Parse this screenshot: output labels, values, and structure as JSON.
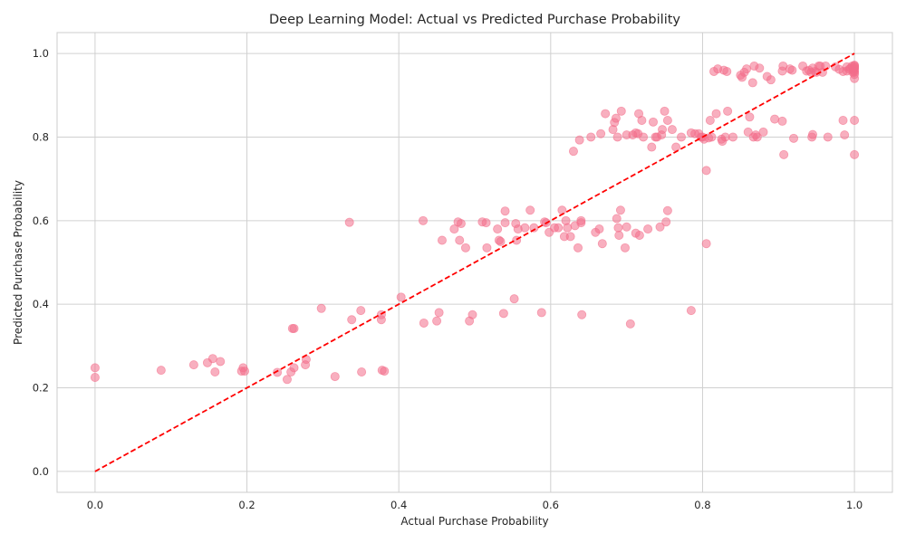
{
  "chart_data": {
    "type": "scatter",
    "title": "Deep Learning Model: Actual vs Predicted Purchase Probability",
    "xlabel": "Actual Purchase Probability",
    "ylabel": "Predicted Purchase Probability",
    "xlim": [
      -0.05,
      1.05
    ],
    "ylim": [
      -0.05,
      1.05
    ],
    "xticks": [
      "0.0",
      "0.2",
      "0.4",
      "0.6",
      "0.8",
      "1.0"
    ],
    "yticks": [
      "0.0",
      "0.2",
      "0.4",
      "0.6",
      "0.8",
      "1.0"
    ],
    "grid": true,
    "point_color": "#f36e8a",
    "line_color": "#ff0000",
    "reference_line": {
      "x": [
        0,
        1
      ],
      "y": [
        0,
        1
      ],
      "style": "dashed"
    },
    "points": [
      [
        0.0,
        0.248
      ],
      [
        0.0,
        0.225
      ],
      [
        0.087,
        0.242
      ],
      [
        0.13,
        0.255
      ],
      [
        0.148,
        0.26
      ],
      [
        0.155,
        0.27
      ],
      [
        0.158,
        0.238
      ],
      [
        0.165,
        0.263
      ],
      [
        0.193,
        0.24
      ],
      [
        0.195,
        0.248
      ],
      [
        0.197,
        0.24
      ],
      [
        0.24,
        0.237
      ],
      [
        0.253,
        0.22
      ],
      [
        0.258,
        0.238
      ],
      [
        0.262,
        0.248
      ],
      [
        0.26,
        0.342
      ],
      [
        0.262,
        0.342
      ],
      [
        0.277,
        0.255
      ],
      [
        0.278,
        0.268
      ],
      [
        0.298,
        0.39
      ],
      [
        0.316,
        0.227
      ],
      [
        0.335,
        0.596
      ],
      [
        0.338,
        0.363
      ],
      [
        0.35,
        0.385
      ],
      [
        0.351,
        0.238
      ],
      [
        0.377,
        0.375
      ],
      [
        0.377,
        0.363
      ],
      [
        0.378,
        0.242
      ],
      [
        0.381,
        0.24
      ],
      [
        0.403,
        0.417
      ],
      [
        0.432,
        0.6
      ],
      [
        0.433,
        0.355
      ],
      [
        0.45,
        0.36
      ],
      [
        0.453,
        0.38
      ],
      [
        0.457,
        0.553
      ],
      [
        0.473,
        0.58
      ],
      [
        0.478,
        0.597
      ],
      [
        0.48,
        0.553
      ],
      [
        0.482,
        0.593
      ],
      [
        0.488,
        0.535
      ],
      [
        0.493,
        0.36
      ],
      [
        0.497,
        0.375
      ],
      [
        0.51,
        0.597
      ],
      [
        0.515,
        0.595
      ],
      [
        0.516,
        0.535
      ],
      [
        0.53,
        0.58
      ],
      [
        0.532,
        0.553
      ],
      [
        0.534,
        0.55
      ],
      [
        0.538,
        0.378
      ],
      [
        0.54,
        0.623
      ],
      [
        0.54,
        0.595
      ],
      [
        0.552,
        0.413
      ],
      [
        0.554,
        0.593
      ],
      [
        0.555,
        0.553
      ],
      [
        0.557,
        0.58
      ],
      [
        0.566,
        0.583
      ],
      [
        0.573,
        0.625
      ],
      [
        0.578,
        0.583
      ],
      [
        0.588,
        0.38
      ],
      [
        0.592,
        0.597
      ],
      [
        0.594,
        0.595
      ],
      [
        0.598,
        0.572
      ],
      [
        0.605,
        0.583
      ],
      [
        0.61,
        0.583
      ],
      [
        0.615,
        0.625
      ],
      [
        0.618,
        0.562
      ],
      [
        0.62,
        0.6
      ],
      [
        0.622,
        0.583
      ],
      [
        0.626,
        0.562
      ],
      [
        0.63,
        0.766
      ],
      [
        0.632,
        0.588
      ],
      [
        0.636,
        0.535
      ],
      [
        0.638,
        0.793
      ],
      [
        0.64,
        0.6
      ],
      [
        0.64,
        0.595
      ],
      [
        0.641,
        0.375
      ],
      [
        0.653,
        0.8
      ],
      [
        0.659,
        0.572
      ],
      [
        0.664,
        0.58
      ],
      [
        0.666,
        0.808
      ],
      [
        0.668,
        0.545
      ],
      [
        0.672,
        0.856
      ],
      [
        0.682,
        0.818
      ],
      [
        0.684,
        0.835
      ],
      [
        0.686,
        0.845
      ],
      [
        0.687,
        0.605
      ],
      [
        0.689,
        0.583
      ],
      [
        0.69,
        0.565
      ],
      [
        0.692,
        0.625
      ],
      [
        0.693,
        0.862
      ],
      [
        0.688,
        0.8
      ],
      [
        0.698,
        0.535
      ],
      [
        0.7,
        0.585
      ],
      [
        0.7,
        0.805
      ],
      [
        0.705,
        0.353
      ],
      [
        0.708,
        0.805
      ],
      [
        0.712,
        0.81
      ],
      [
        0.712,
        0.57
      ],
      [
        0.715,
        0.808
      ],
      [
        0.717,
        0.565
      ],
      [
        0.716,
        0.856
      ],
      [
        0.72,
        0.84
      ],
      [
        0.722,
        0.8
      ],
      [
        0.728,
        0.58
      ],
      [
        0.733,
        0.776
      ],
      [
        0.735,
        0.836
      ],
      [
        0.738,
        0.8
      ],
      [
        0.74,
        0.8
      ],
      [
        0.744,
        0.585
      ],
      [
        0.746,
        0.805
      ],
      [
        0.747,
        0.818
      ],
      [
        0.75,
        0.862
      ],
      [
        0.752,
        0.597
      ],
      [
        0.754,
        0.84
      ],
      [
        0.754,
        0.624
      ],
      [
        0.76,
        0.818
      ],
      [
        0.765,
        0.776
      ],
      [
        0.772,
        0.8
      ],
      [
        0.785,
        0.385
      ],
      [
        0.785,
        0.81
      ],
      [
        0.79,
        0.808
      ],
      [
        0.795,
        0.808
      ],
      [
        0.798,
        0.8
      ],
      [
        0.8,
        0.8
      ],
      [
        0.802,
        0.795
      ],
      [
        0.805,
        0.545
      ],
      [
        0.805,
        0.72
      ],
      [
        0.808,
        0.798
      ],
      [
        0.81,
        0.84
      ],
      [
        0.812,
        0.8
      ],
      [
        0.815,
        0.957
      ],
      [
        0.818,
        0.856
      ],
      [
        0.82,
        0.963
      ],
      [
        0.825,
        0.795
      ],
      [
        0.826,
        0.79
      ],
      [
        0.828,
        0.96
      ],
      [
        0.83,
        0.8
      ],
      [
        0.832,
        0.957
      ],
      [
        0.833,
        0.862
      ],
      [
        0.84,
        0.8
      ],
      [
        0.85,
        0.948
      ],
      [
        0.852,
        0.943
      ],
      [
        0.855,
        0.955
      ],
      [
        0.858,
        0.963
      ],
      [
        0.86,
        0.812
      ],
      [
        0.862,
        0.848
      ],
      [
        0.866,
        0.93
      ],
      [
        0.867,
        0.8
      ],
      [
        0.868,
        0.97
      ],
      [
        0.87,
        0.805
      ],
      [
        0.872,
        0.8
      ],
      [
        0.875,
        0.965
      ],
      [
        0.88,
        0.812
      ],
      [
        0.885,
        0.945
      ],
      [
        0.89,
        0.937
      ],
      [
        0.895,
        0.843
      ],
      [
        0.905,
        0.838
      ],
      [
        0.905,
        0.958
      ],
      [
        0.906,
        0.97
      ],
      [
        0.907,
        0.758
      ],
      [
        0.915,
        0.963
      ],
      [
        0.918,
        0.96
      ],
      [
        0.92,
        0.797
      ],
      [
        0.932,
        0.97
      ],
      [
        0.937,
        0.958
      ],
      [
        0.94,
        0.96
      ],
      [
        0.943,
        0.955
      ],
      [
        0.944,
        0.8
      ],
      [
        0.945,
        0.806
      ],
      [
        0.945,
        0.965
      ],
      [
        0.948,
        0.957
      ],
      [
        0.95,
        0.955
      ],
      [
        0.953,
        0.97
      ],
      [
        0.955,
        0.97
      ],
      [
        0.958,
        0.955
      ],
      [
        0.962,
        0.97
      ],
      [
        0.965,
        0.8
      ],
      [
        0.975,
        0.968
      ],
      [
        0.98,
        0.962
      ],
      [
        0.985,
        0.957
      ],
      [
        0.985,
        0.84
      ],
      [
        0.987,
        0.805
      ],
      [
        0.99,
        0.958
      ],
      [
        0.99,
        0.968
      ],
      [
        0.993,
        0.962
      ],
      [
        0.995,
        0.965
      ],
      [
        0.997,
        0.97
      ],
      [
        0.998,
        0.955
      ],
      [
        0.999,
        0.96
      ],
      [
        1.0,
        0.972
      ],
      [
        1.0,
        0.968
      ],
      [
        1.0,
        0.963
      ],
      [
        1.0,
        0.958
      ],
      [
        1.0,
        0.955
      ],
      [
        1.0,
        0.95
      ],
      [
        1.0,
        0.94
      ],
      [
        1.0,
        0.84
      ],
      [
        1.0,
        0.758
      ],
      [
        1.0,
        0.965
      ],
      [
        1.0,
        0.97
      ]
    ]
  }
}
